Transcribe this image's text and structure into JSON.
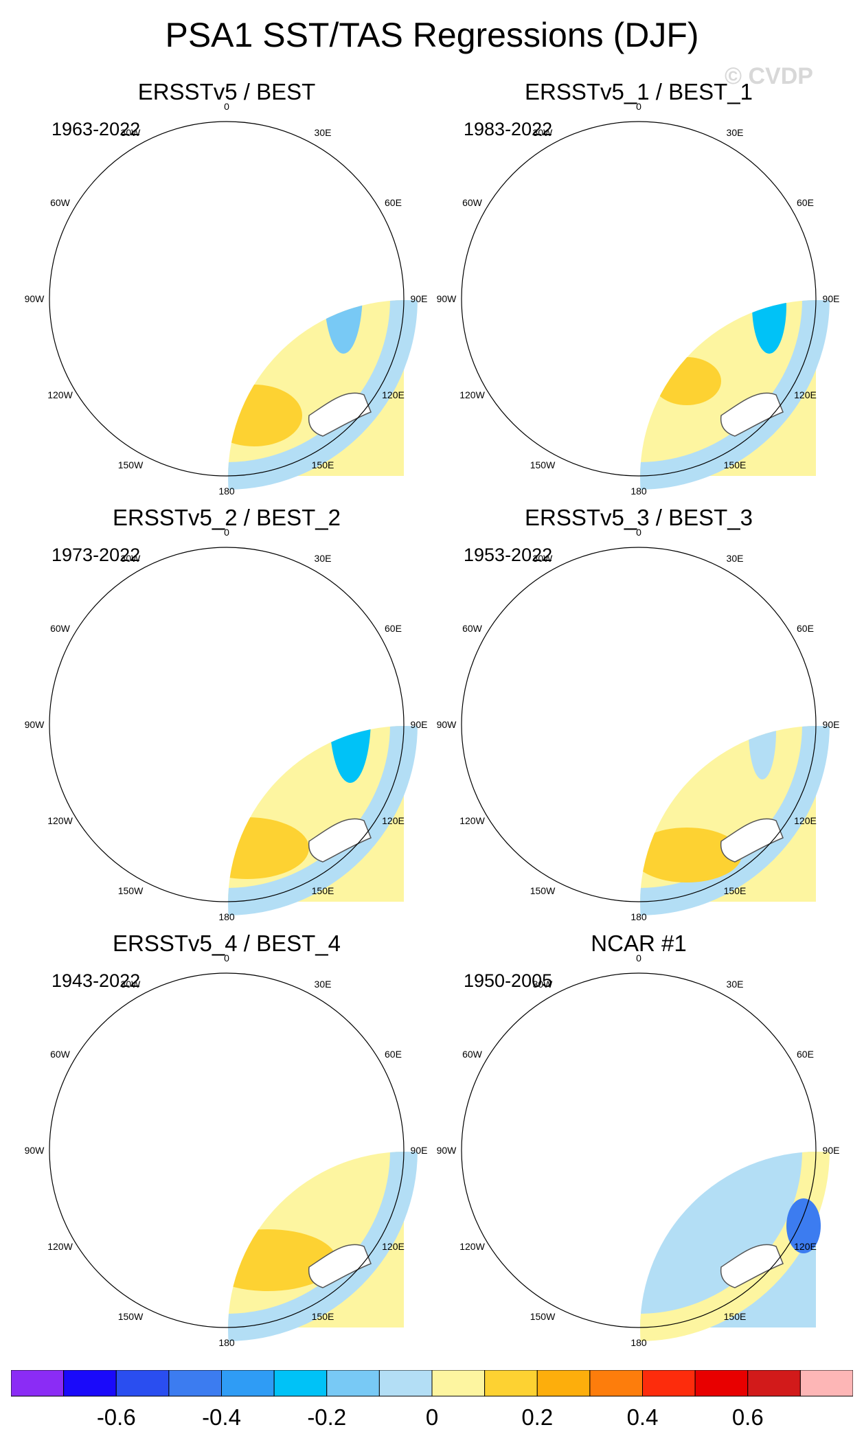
{
  "title": "PSA1 SST/TAS Regressions (DJF)",
  "watermark": "© CVDP",
  "colors": {
    "palette": [
      "#8b2cf5",
      "#1a0afa",
      "#2a4ef0",
      "#3c7cf0",
      "#2f9cf5",
      "#00c2f7",
      "#78c9f5",
      "#b3def5",
      "#fdf5a0",
      "#fdd232",
      "#fdae0c",
      "#fd7d0c",
      "#fd2c0c",
      "#e80000",
      "#d21a1a",
      "#fdb6b6"
    ],
    "coastline": "#555555",
    "land": "#ffffff"
  },
  "lon_labels": [
    "0",
    "30E",
    "60E",
    "90E",
    "120E",
    "150E",
    "180",
    "150W",
    "120W",
    "90W",
    "60W",
    "30W"
  ],
  "panels": [
    {
      "title": "ERSSTv5 / BEST",
      "period": "1963-2022",
      "pattern": 0
    },
    {
      "title": "ERSSTv5_1 / BEST_1",
      "period": "1983-2022",
      "pattern": 1
    },
    {
      "title": "ERSSTv5_2 / BEST_2",
      "period": "1973-2022",
      "pattern": 2
    },
    {
      "title": "ERSSTv5_3 / BEST_3",
      "period": "1953-2022",
      "pattern": 3
    },
    {
      "title": "ERSSTv5_4 / BEST_4",
      "period": "1943-2022",
      "pattern": 4
    },
    {
      "title": "NCAR #1",
      "period": "1950-2005",
      "pattern": 5
    }
  ],
  "colorbar": {
    "labels": [
      "-0.6",
      "-0.4",
      "-0.2",
      "0",
      "0.2",
      "0.4",
      "0.6"
    ],
    "levels": [
      -0.7,
      -0.6,
      -0.5,
      -0.4,
      -0.3,
      -0.2,
      -0.1,
      0,
      0.1,
      0.2,
      0.3,
      0.4,
      0.5,
      0.6,
      0.7
    ]
  }
}
